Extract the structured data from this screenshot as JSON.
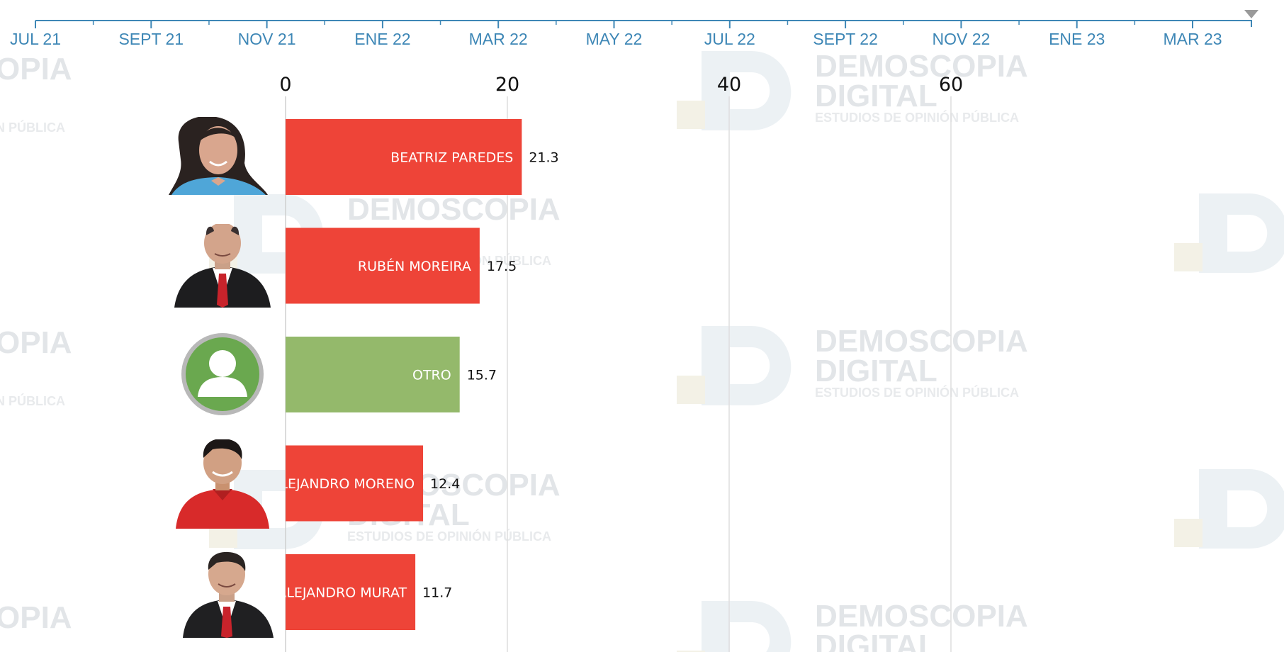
{
  "timeline": {
    "labels": [
      "JUL 21",
      "SEPT 21",
      "NOV 21",
      "ENE 22",
      "MAR 22",
      "MAY 22",
      "JUL 22",
      "SEPT 22",
      "NOV 22",
      "ENE 23",
      "MAR 23"
    ],
    "color": "#3e87b6"
  },
  "watermark": {
    "line1": "DEMOSCOPIA",
    "line2": "DIGITAL",
    "line3": "ESTUDIOS DE OPINIÓN PÚBLICA",
    "partial_line1": "OPIA",
    "partial_line3": "N PÚBLICA"
  },
  "chart_data": {
    "type": "bar",
    "orientation": "horizontal",
    "categories": [
      "BEATRIZ PAREDES",
      "RUBÉN MOREIRA",
      "OTRO",
      "ALEJANDRO MORENO",
      "ALEJANDRO MURAT"
    ],
    "values": [
      21.3,
      17.5,
      15.7,
      12.4,
      11.7
    ],
    "colors": [
      "#ee4438",
      "#ee4438",
      "#94b96b",
      "#ee4438",
      "#ee4438"
    ],
    "xticks": [
      0,
      20,
      40,
      60
    ],
    "xlim": [
      0,
      88
    ],
    "grid": true
  }
}
